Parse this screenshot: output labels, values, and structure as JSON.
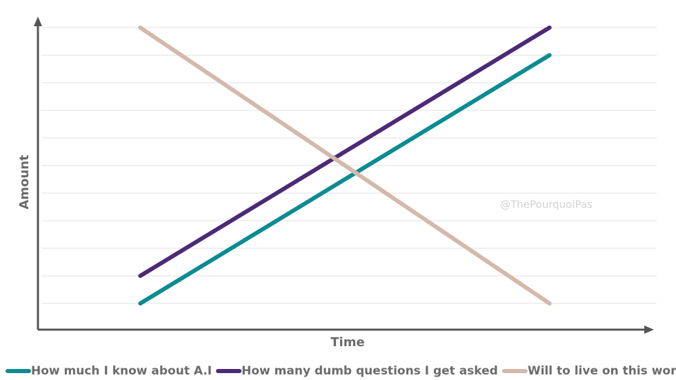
{
  "chart_data": {
    "type": "line",
    "y_label": "Amount",
    "x_label": "Time",
    "annotation": "@ThePourquoiPas",
    "x": [
      1,
      5
    ],
    "xlim": [
      0,
      6
    ],
    "ylim": [
      0,
      11.3
    ],
    "yticks": [
      1,
      2,
      3,
      4,
      5,
      6,
      7,
      8,
      9,
      10,
      11
    ],
    "grid": true,
    "legend": "bottom",
    "series": [
      {
        "name": "How much I know about A.I",
        "color": "#0b8c91",
        "values": [
          1,
          10
        ]
      },
      {
        "name": "How many dumb questions I get asked",
        "color": "#4c2a77",
        "values": [
          2,
          11
        ]
      },
      {
        "name": "Will to live on this world",
        "color": "#d3b9aa",
        "values": [
          11,
          1
        ]
      }
    ]
  }
}
